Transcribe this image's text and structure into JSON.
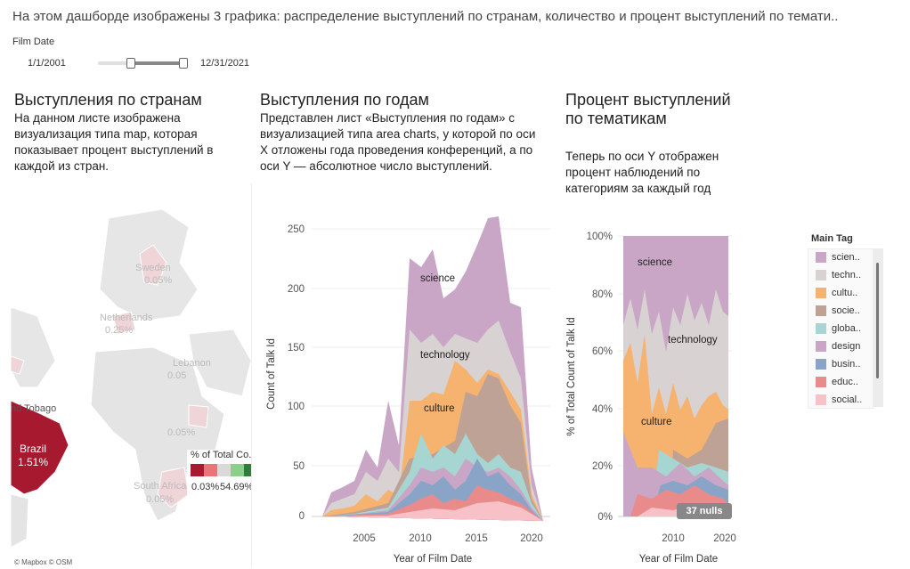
{
  "dashboard": {
    "title": "На этом дашборде изображены 3 графика: распределение выступлений по странам,  количество и процент выступлений по темати.."
  },
  "filter": {
    "label": "Film Date",
    "start": "1/1/2001",
    "end": "12/31/2021"
  },
  "map_sheet": {
    "title": "Выступления по странам",
    "description": "На данном листе изображена визуализация типа map, которая показывает процент выступлений в каждой из стран.",
    "labels": {
      "sweden": "Sweden",
      "sweden_val": "0.05%",
      "netherlands": "Netherlands",
      "netherlands_val": "0.25%",
      "lebanon": "Lebanon",
      "lebanon_val": "0.05",
      "trinidad": "nd Tobago",
      "brazil": "Brazil",
      "brazil_val": "1.51%",
      "south_africa": "South Africa",
      "south_africa_val": "0.05%",
      "tanzania_val": "0.05%"
    },
    "legend_title": "% of Total Co..",
    "legend_min": "0.03%",
    "legend_max": "54.69%",
    "attribution": "© Mapbox © OSM",
    "colors": {
      "brazil": "#a6192e",
      "land": "#e4e4e4",
      "faint": "#efd4d8"
    }
  },
  "years_sheet": {
    "title": "Выступления по годам",
    "description": "Представлен лист «Выступления по годам» с визуализацией типа area charts, у которой по оси X отложены года проведения конференций, а по оси Y — абсолютное число выступлений.",
    "xlabel": "Year of Film Date",
    "ylabel": "Count of Talk Id",
    "yticks": [
      "0",
      "50",
      "100",
      "150",
      "200",
      "250"
    ],
    "xticks": [
      "2005",
      "2010",
      "2015",
      "2020"
    ],
    "annotations": {
      "science": "science",
      "technology": "technology",
      "culture": "culture"
    }
  },
  "pct_sheet": {
    "title": "Процент выступлений по тематикам",
    "description": "Теперь по оси Y отображен процент наблюдений по категориям за каждый год",
    "xlabel": "Year of Film Date",
    "ylabel": "% of Total Count of Talk Id",
    "yticks": [
      "0%",
      "20%",
      "40%",
      "60%",
      "80%",
      "100%"
    ],
    "xticks": [
      "2010",
      "2020"
    ],
    "annotations": {
      "science": "science",
      "technology": "technology",
      "culture": "culture"
    },
    "nulls": "37 nulls"
  },
  "legend": {
    "title": "Main Tag",
    "items": [
      {
        "label": "scien..",
        "color": "#c9a6c5"
      },
      {
        "label": "techn..",
        "color": "#d8d2d2"
      },
      {
        "label": "cultu..",
        "color": "#f5b36f"
      },
      {
        "label": "socie..",
        "color": "#bfa296"
      },
      {
        "label": "globa..",
        "color": "#a6d5d2"
      },
      {
        "label": "design",
        "color": "#c9a6c5"
      },
      {
        "label": "busin..",
        "color": "#8aa4c8"
      },
      {
        "label": "educ..",
        "color": "#e98b8b"
      },
      {
        "label": "social..",
        "color": "#f8c1c7"
      }
    ]
  },
  "chart_data": [
    {
      "type": "area",
      "x": [
        2001,
        2002,
        2003,
        2004,
        2005,
        2006,
        2007,
        2008,
        2009,
        2010,
        2011,
        2012,
        2013,
        2014,
        2015,
        2016,
        2017,
        2018,
        2019,
        2020,
        2021
      ],
      "series": [
        {
          "name": "science",
          "values": [
            3,
            8,
            10,
            12,
            18,
            20,
            20,
            28,
            15,
            55,
            60,
            55,
            55,
            60,
            65,
            70,
            75,
            60,
            40,
            10,
            2
          ]
        }
      ],
      "ylim": [
        0,
        260
      ],
      "xlabel": "Year of Film Date",
      "ylabel": "Count of Talk Id"
    }
  ]
}
